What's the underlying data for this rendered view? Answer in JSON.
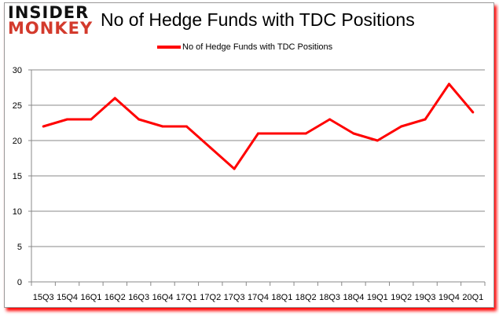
{
  "logo": {
    "line1": "INSIDER",
    "line2": "MONKEY"
  },
  "chart_data": {
    "type": "line",
    "title": "No of Hedge Funds with TDC Positions",
    "categories": [
      "15Q3",
      "15Q4",
      "16Q1",
      "16Q2",
      "16Q3",
      "16Q4",
      "17Q1",
      "17Q2",
      "17Q3",
      "17Q4",
      "18Q1",
      "18Q2",
      "18Q3",
      "18Q4",
      "19Q1",
      "19Q2",
      "19Q3",
      "19Q4",
      "20Q1"
    ],
    "series": [
      {
        "name": "No of Hedge Funds with TDC Positions",
        "values": [
          22,
          23,
          23,
          26,
          23,
          22,
          22,
          19,
          16,
          21,
          21,
          21,
          23,
          21,
          20,
          22,
          23,
          28,
          24
        ],
        "color": "#ff0000"
      }
    ],
    "ylim": [
      0,
      30
    ],
    "yticks": [
      0,
      5,
      10,
      15,
      20,
      25,
      30
    ],
    "grid": true,
    "legend": "top"
  }
}
